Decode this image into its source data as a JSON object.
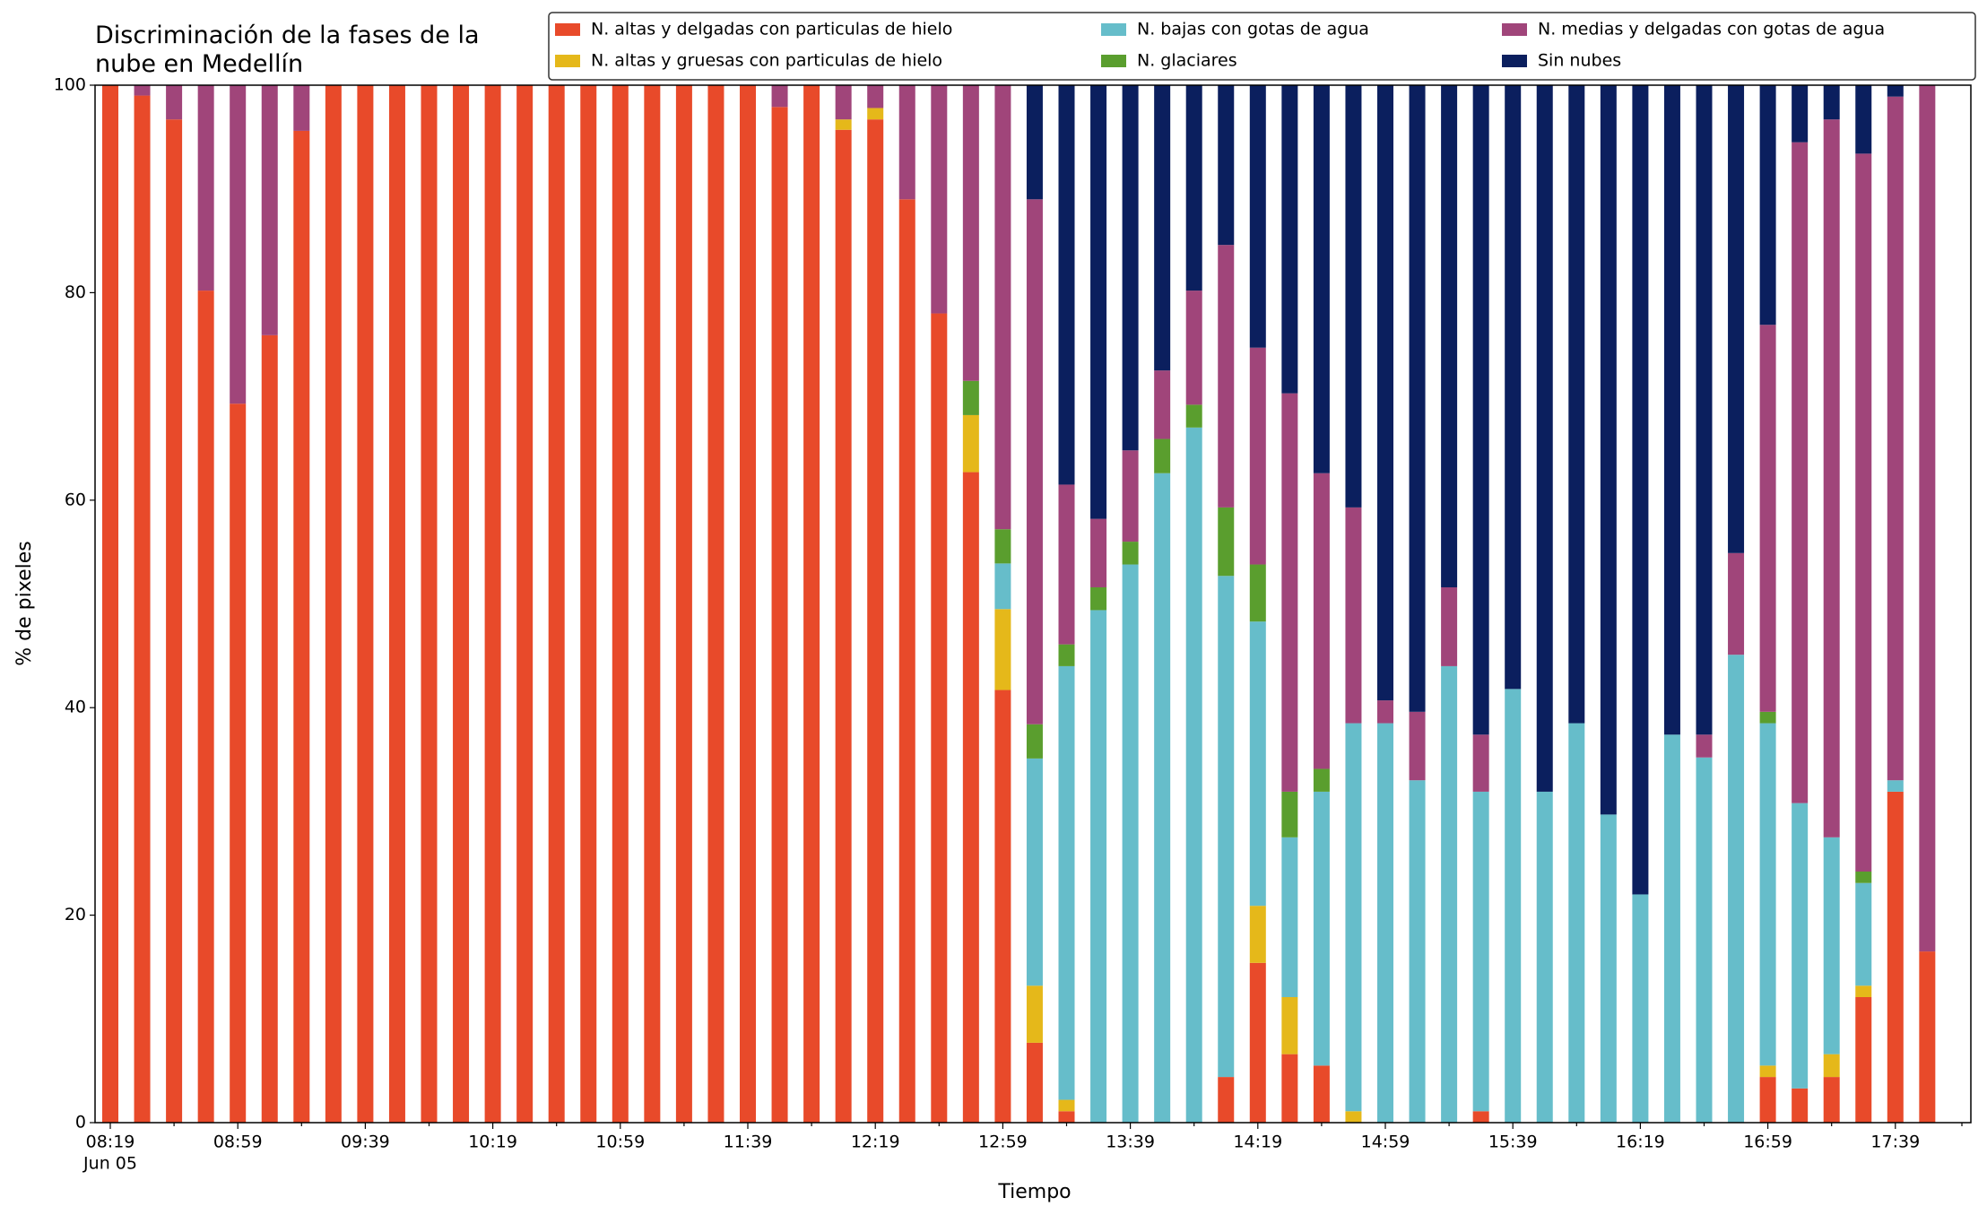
{
  "chart_data": {
    "type": "stacked_bar",
    "title": "Discriminación de la fases de la\nnube en Medellín",
    "x_label": "Tiempo",
    "y_label": "% de pixeles",
    "x_sublabel": "Jun 05",
    "categories": [
      "08:19",
      null,
      null,
      null,
      "08:59",
      null,
      null,
      null,
      "09:39",
      null,
      null,
      null,
      "10:19",
      null,
      null,
      null,
      "10:59",
      null,
      null,
      null,
      "11:39",
      null,
      null,
      null,
      "12:19",
      null,
      null,
      null,
      "12:59",
      null,
      null,
      null,
      "13:39",
      null,
      null,
      null,
      "14:19",
      null,
      null,
      null,
      "14:59",
      null,
      null,
      null,
      "15:39",
      null,
      null,
      null,
      "16:19",
      null,
      null,
      null,
      "16:59",
      null,
      null,
      null,
      "17:39",
      null
    ],
    "ylim": [
      0,
      100
    ],
    "yticks": [
      0,
      20,
      40,
      60,
      80,
      100
    ],
    "series": [
      {
        "name": "N. altas y delgadas con particulas de hielo",
        "color": "#e84a2a",
        "values": [
          100,
          99,
          96.7,
          80.2,
          69.3,
          75.9,
          95.6,
          100,
          100,
          100,
          100,
          100,
          100,
          100,
          100,
          100,
          100,
          100,
          100,
          100,
          100,
          97.9,
          100,
          95.7,
          96.7,
          89.0,
          78.0,
          62.7,
          41.7,
          7.7,
          1.1,
          0,
          0,
          0,
          0,
          4.4,
          15.4,
          6.6,
          5.5,
          0,
          0,
          0,
          0,
          1.1,
          0,
          0,
          0,
          0,
          0,
          0,
          0,
          0,
          4.4,
          3.3,
          4.4,
          12.1,
          31.9,
          16.5
        ]
      },
      {
        "name": "N. altas y gruesas con particulas de hielo",
        "color": "#e5b81a",
        "values": [
          0,
          0,
          0,
          0,
          0,
          0,
          0,
          0,
          0,
          0,
          0,
          0,
          0,
          0,
          0,
          0,
          0,
          0,
          0,
          0,
          0,
          0,
          0,
          1.0,
          1.1,
          0,
          0,
          5.5,
          7.8,
          5.5,
          1.1,
          0,
          0,
          0,
          0,
          0,
          5.5,
          5.5,
          0,
          1.1,
          0,
          0,
          0,
          0,
          0,
          0,
          0,
          0,
          0,
          0,
          0,
          0,
          1.1,
          0,
          2.2,
          1.1,
          0,
          0
        ]
      },
      {
        "name": "N. bajas con gotas de agua",
        "color": "#66bdca",
        "values": [
          0,
          0,
          0,
          0,
          0,
          0,
          0,
          0,
          0,
          0,
          0,
          0,
          0,
          0,
          0,
          0,
          0,
          0,
          0,
          0,
          0,
          0,
          0,
          0,
          0,
          0,
          0,
          0,
          4.4,
          21.9,
          41.8,
          49.4,
          53.8,
          62.6,
          67.0,
          48.3,
          27.4,
          15.4,
          26.4,
          37.4,
          38.5,
          33.0,
          44.0,
          30.8,
          41.8,
          31.9,
          38.5,
          29.7,
          22.0,
          37.4,
          35.2,
          45.1,
          33.0,
          27.5,
          20.9,
          9.9,
          1.1,
          0
        ]
      },
      {
        "name": "N. glaciares",
        "color": "#5a9e2e",
        "values": [
          0,
          0,
          0,
          0,
          0,
          0,
          0,
          0,
          0,
          0,
          0,
          0,
          0,
          0,
          0,
          0,
          0,
          0,
          0,
          0,
          0,
          0,
          0,
          0,
          0,
          0,
          0,
          3.3,
          3.3,
          3.3,
          2.1,
          2.2,
          2.2,
          3.3,
          2.2,
          6.6,
          5.5,
          4.4,
          2.2,
          0,
          0,
          0,
          0,
          0,
          0,
          0,
          0,
          0,
          0,
          0,
          0,
          0,
          1.1,
          0,
          0,
          1.1,
          0,
          0
        ]
      },
      {
        "name": "N. medias y delgadas con gotas de agua",
        "color": "#a0457a",
        "values": [
          0,
          1.0,
          3.3,
          19.8,
          30.7,
          24.1,
          4.4,
          0,
          0,
          0,
          0,
          0,
          0,
          0,
          0,
          0,
          0,
          0,
          0,
          0,
          0,
          2.1,
          0,
          3.3,
          2.2,
          11.0,
          22.0,
          28.5,
          42.8,
          50.6,
          15.4,
          6.6,
          8.8,
          6.6,
          11.0,
          25.3,
          20.9,
          38.4,
          28.5,
          20.8,
          2.2,
          6.6,
          7.6,
          5.5,
          0,
          0,
          0,
          0,
          0,
          0,
          2.2,
          9.8,
          37.3,
          63.7,
          69.2,
          69.2,
          65.9,
          83.5
        ]
      },
      {
        "name": "Sin nubes",
        "color": "#0b1f5e",
        "values": [
          0,
          0,
          0,
          0,
          0,
          0,
          0,
          0,
          0,
          0,
          0,
          0,
          0,
          0,
          0,
          0,
          0,
          0,
          0,
          0,
          0,
          0,
          0,
          0,
          0,
          0,
          0,
          0,
          0,
          11.0,
          38.5,
          41.8,
          35.2,
          27.5,
          19.8,
          15.4,
          25.3,
          29.7,
          37.4,
          40.7,
          59.3,
          60.4,
          48.4,
          62.6,
          58.2,
          68.1,
          61.5,
          70.3,
          78.0,
          62.6,
          62.6,
          45.1,
          23.1,
          5.5,
          3.3,
          6.6,
          1.1,
          0
        ]
      }
    ]
  }
}
